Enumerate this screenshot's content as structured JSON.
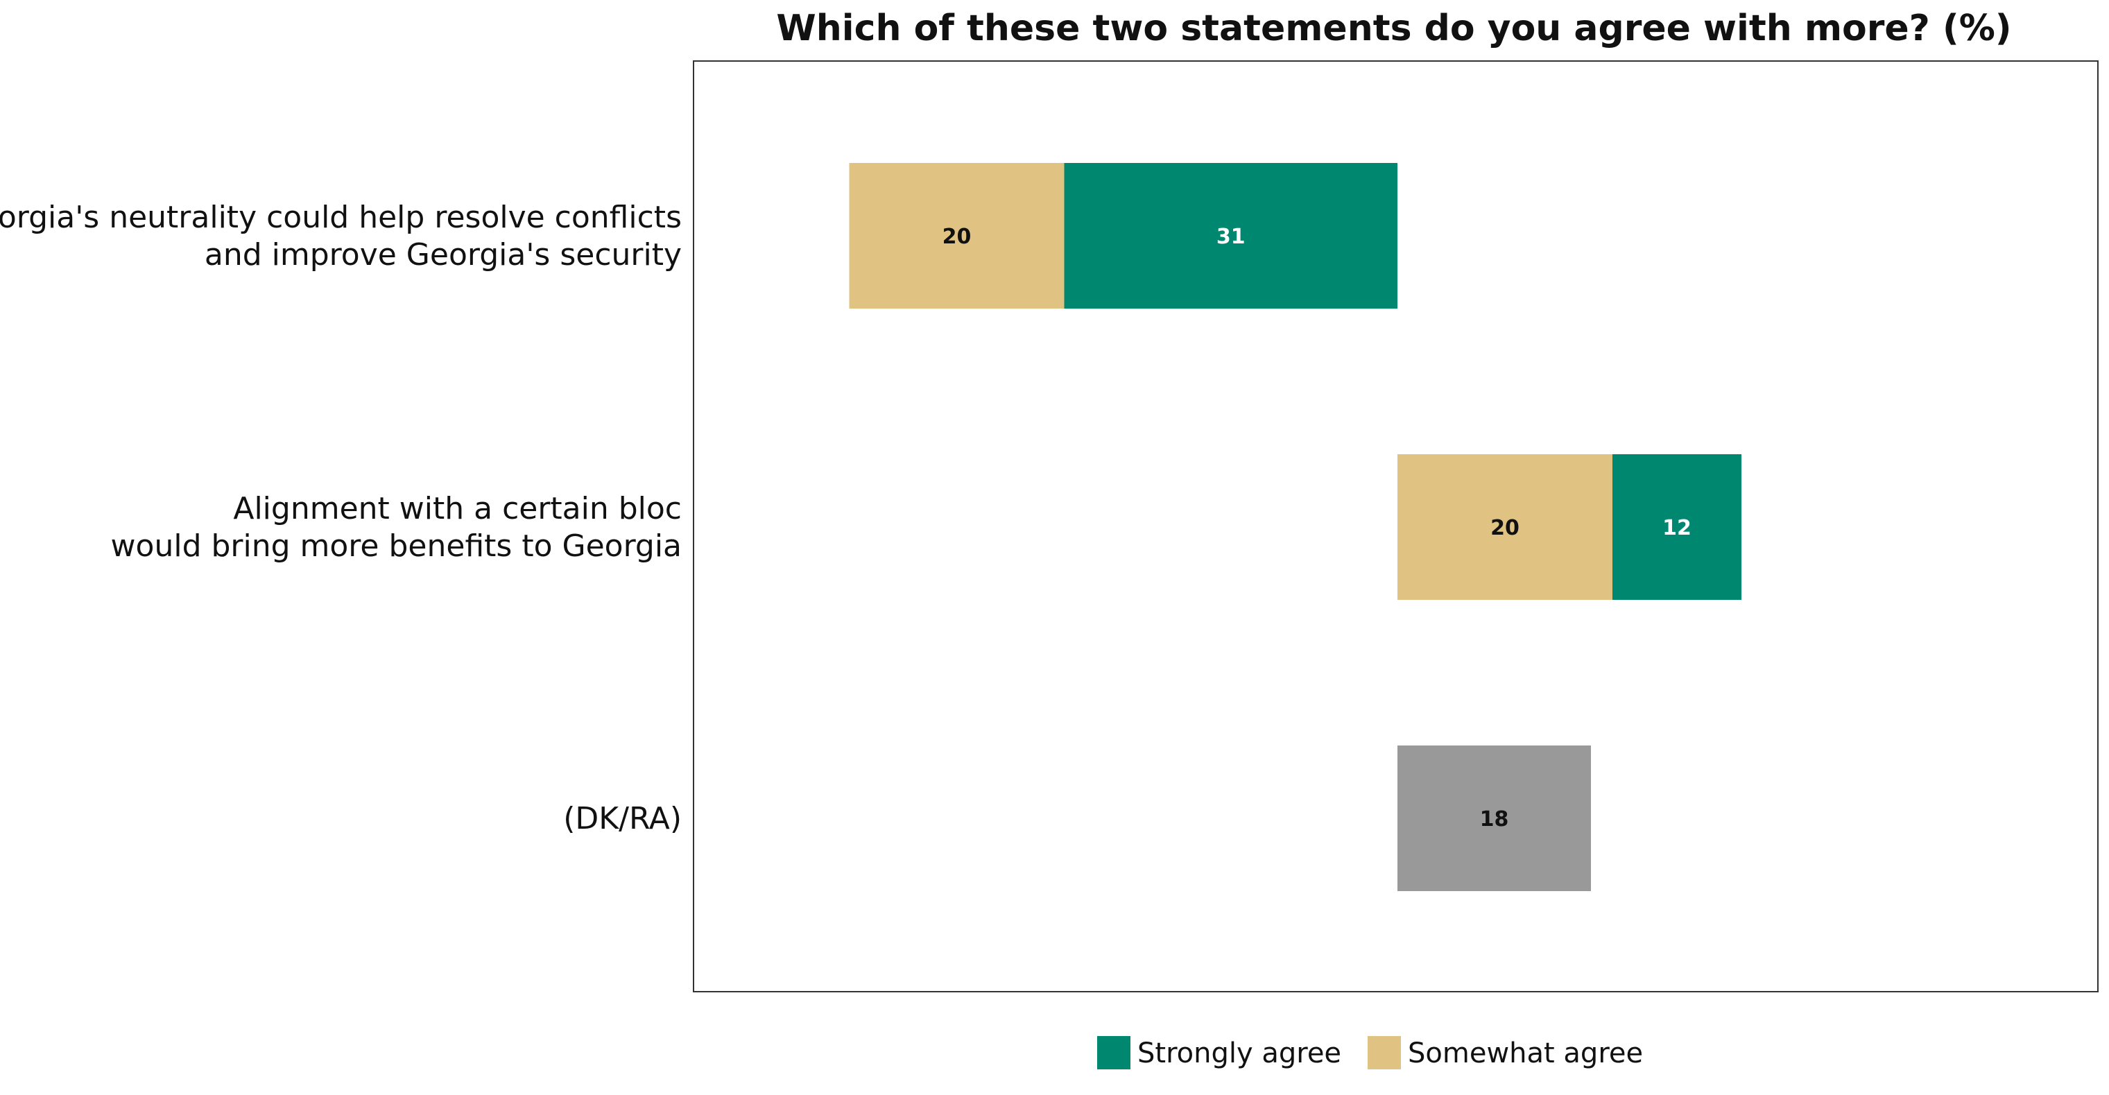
{
  "chart_data": {
    "type": "bar",
    "orientation": "horizontal",
    "stacking": "diverging",
    "title": "Which of these two statements do you agree with more? (%)",
    "xlabel": "",
    "ylabel": "",
    "grid": false,
    "legend_position": "bottom",
    "categories": [
      [
        "Georgia's neutrality could help resolve conflicts",
        "and improve Georgia's security"
      ],
      [
        "Alignment with a certain bloc",
        "would bring more benefits to Georgia"
      ],
      [
        "(DK/RA)"
      ]
    ],
    "segments": [
      [
        {
          "series": "Strongly agree",
          "value": 31,
          "side": "left"
        },
        {
          "series": "Somewhat agree",
          "value": 20,
          "side": "left"
        }
      ],
      [
        {
          "series": "Somewhat agree",
          "value": 20,
          "side": "right"
        },
        {
          "series": "Strongly agree",
          "value": 12,
          "side": "right"
        }
      ],
      [
        {
          "series": "DK/RA",
          "value": 18,
          "side": "right"
        }
      ]
    ],
    "colors": {
      "Strongly agree": "#00876f",
      "Somewhat agree": "#e0c382",
      "DK/RA": "#999999"
    },
    "label_colors": {
      "Strongly agree": "#ffffff",
      "Somewhat agree": "#111111",
      "DK/RA": "#111111"
    },
    "legend": [
      "Strongly agree",
      "Somewhat agree"
    ]
  }
}
